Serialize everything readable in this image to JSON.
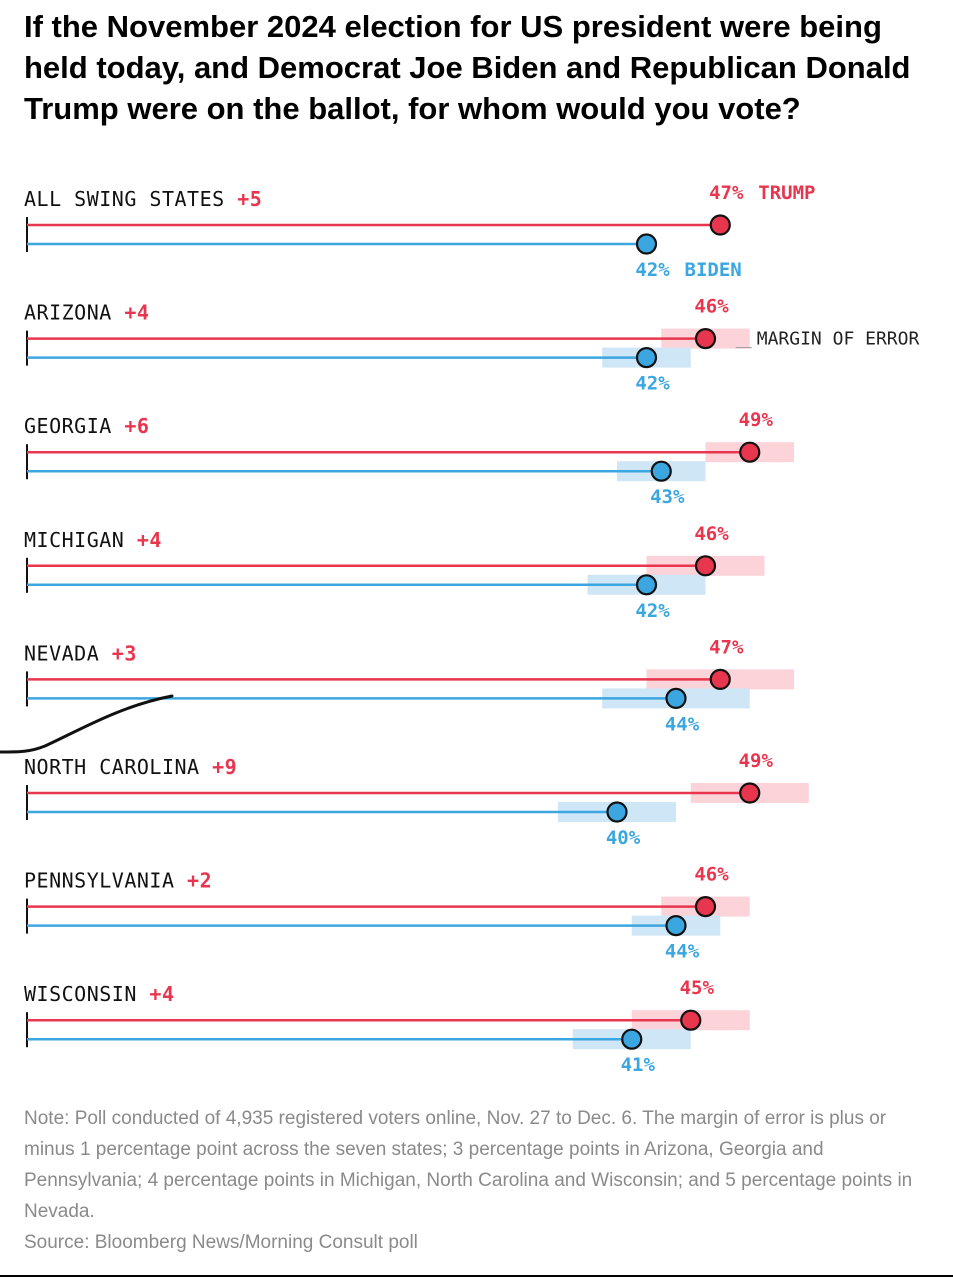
{
  "title": "If the November 2024 election for US president were being held today, and Democrat Joe Biden and Republican Donald Trump were on the ballot, for whom would you vote?",
  "chart_data": {
    "type": "dot",
    "series": [
      {
        "name": "TRUMP",
        "color": "#e8364f"
      },
      {
        "name": "BIDEN",
        "color": "#3ba6e0"
      }
    ],
    "rows": [
      {
        "label": "ALL SWING STATES",
        "lead": "+5",
        "trump": 47,
        "biden": 42,
        "moe": 1,
        "trump_label": "47%",
        "biden_label": "42%"
      },
      {
        "label": "ARIZONA",
        "lead": "+4",
        "trump": 46,
        "biden": 42,
        "moe": 3,
        "trump_label": "46%",
        "biden_label": "42%"
      },
      {
        "label": "GEORGIA",
        "lead": "+6",
        "trump": 49,
        "biden": 43,
        "moe": 3,
        "trump_label": "49%",
        "biden_label": "43%"
      },
      {
        "label": "MICHIGAN",
        "lead": "+4",
        "trump": 46,
        "biden": 42,
        "moe": 4,
        "trump_label": "46%",
        "biden_label": "42%"
      },
      {
        "label": "NEVADA",
        "lead": "+3",
        "trump": 47,
        "biden": 44,
        "moe": 5,
        "trump_label": "47%",
        "biden_label": "44%"
      },
      {
        "label": "NORTH CAROLINA",
        "lead": "+9",
        "trump": 49,
        "biden": 40,
        "moe": 4,
        "trump_label": "49%",
        "biden_label": "40%"
      },
      {
        "label": "PENNSYLVANIA",
        "lead": "+2",
        "trump": 46,
        "biden": 44,
        "moe": 3,
        "trump_label": "46%",
        "biden_label": "44%"
      },
      {
        "label": "WISCONSIN",
        "lead": "+4",
        "trump": 45,
        "biden": 41,
        "moe": 4,
        "trump_label": "45%",
        "biden_label": "41%"
      }
    ],
    "annotations": {
      "trump_legend": "TRUMP",
      "biden_legend": "BIDEN",
      "margin_of_error": "MARGIN OF ERROR"
    },
    "xlim": [
      0,
      50
    ],
    "colors": {
      "trump": "#e8364f",
      "biden": "#3ba6e0",
      "trump_band": "#fbd3d9",
      "biden_band": "#cfe6f7",
      "lead": "#e8364f"
    }
  },
  "note": "Note: Poll conducted of 4,935 registered voters online, Nov. 27 to Dec. 6. The margin of error is plus or minus 1 percentage point across the seven states; 3 percentage points in Arizona, Georgia and Pennsylvania; 4 percentage points in Michigan, North Carolina and Wisconsin; and 5 percentage points in Nevada.",
  "source": "Source: Bloomberg News/Morning Consult poll"
}
